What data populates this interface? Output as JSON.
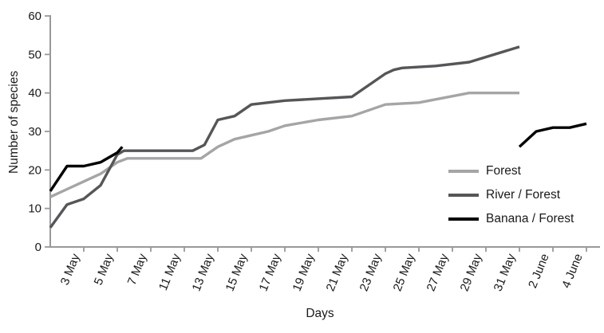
{
  "chart_data": {
    "type": "line",
    "title": "",
    "xlabel": "Days",
    "ylabel": "Number of species",
    "ylim": [
      0,
      60
    ],
    "grid": false,
    "legend_position": "right-middle",
    "axis_color": "#999999",
    "text_color": "#1a1a1a",
    "y_ticks": [
      0,
      10,
      20,
      30,
      40,
      50,
      60
    ],
    "x_tick_positions": [
      2,
      4,
      6,
      8,
      10,
      12,
      14,
      16,
      18,
      20,
      22,
      24,
      26,
      28,
      30,
      32
    ],
    "x_tick_labels": [
      "3 May",
      "5 May",
      "7 May",
      "11 May",
      "13 May",
      "15 May",
      "17 May",
      "19 May",
      "21 May",
      "23 May",
      "25 May",
      "27 May",
      "29 May",
      "31 May",
      "2 June",
      "4 June"
    ],
    "series": [
      {
        "name": "Forest",
        "color": "#a5a5a5",
        "segments": [
          [
            [
              0,
              13
            ],
            [
              1,
              15
            ],
            [
              2,
              17
            ],
            [
              3,
              19
            ],
            [
              4,
              22
            ],
            [
              4.6,
              23
            ],
            [
              9,
              23
            ],
            [
              10,
              26
            ],
            [
              11,
              28
            ],
            [
              12,
              29
            ],
            [
              13,
              30
            ],
            [
              14,
              31.5
            ],
            [
              16,
              33
            ],
            [
              18,
              34
            ],
            [
              20,
              37
            ],
            [
              22,
              37.5
            ],
            [
              25,
              40
            ],
            [
              28,
              40
            ]
          ]
        ]
      },
      {
        "name": "River / Forest",
        "color": "#565659",
        "segments": [
          [
            [
              0,
              5
            ],
            [
              1,
              11
            ],
            [
              2,
              12.5
            ],
            [
              3,
              16
            ],
            [
              4,
              24
            ],
            [
              4.4,
              25
            ],
            [
              8.5,
              25
            ],
            [
              9.2,
              26.5
            ],
            [
              10,
              33
            ],
            [
              11,
              34
            ],
            [
              12,
              37
            ],
            [
              14,
              38
            ],
            [
              18,
              39
            ],
            [
              20,
              45
            ],
            [
              20.5,
              46
            ],
            [
              21,
              46.5
            ],
            [
              23,
              47
            ],
            [
              25,
              48
            ],
            [
              28,
              52
            ]
          ]
        ]
      },
      {
        "name": "Banana / Forest",
        "color": "#000000",
        "segments": [
          [
            [
              0,
              14.5
            ],
            [
              1,
              21
            ],
            [
              2,
              21
            ],
            [
              3,
              22
            ],
            [
              4,
              24.5
            ],
            [
              4.3,
              26
            ]
          ],
          [
            [
              28,
              26
            ],
            [
              29,
              30
            ],
            [
              30,
              31
            ],
            [
              31,
              31
            ],
            [
              32,
              32
            ]
          ]
        ]
      }
    ]
  }
}
